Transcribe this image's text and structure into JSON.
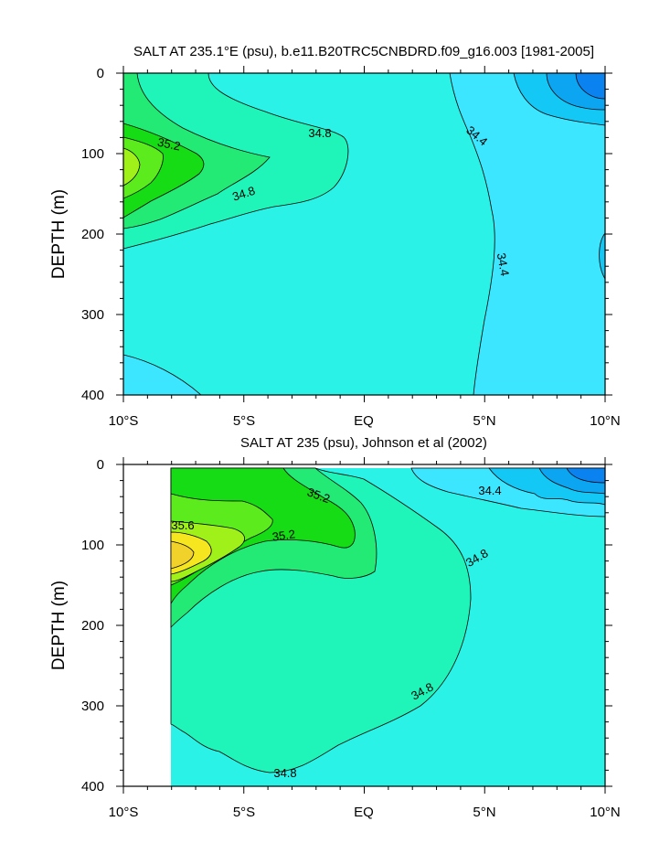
{
  "chart_data": [
    {
      "type": "contour",
      "title": "SALT AT 235.1°E (psu), b.e11.B20TRC5CNBDRD.f09_g16.003 [1981-2005]",
      "ylabel": "DEPTH (m)",
      "xlabel": "",
      "xlim": [
        -10,
        10
      ],
      "ylim": [
        400,
        0
      ],
      "x_ticks": [
        -10,
        -5,
        0,
        5,
        10
      ],
      "x_tick_labels": [
        "10°S",
        "5°S",
        "EQ",
        "5°N",
        "10°N"
      ],
      "y_ticks": [
        0,
        100,
        200,
        300,
        400
      ],
      "y_tick_labels": [
        "0",
        "100",
        "200",
        "300",
        "400"
      ],
      "data_extent": {
        "lat": [
          -10,
          10
        ],
        "depth": [
          0,
          400
        ]
      },
      "contour_interval": 0.2,
      "contour_labels": [
        "35.2",
        "34.8",
        "34.8",
        "34.4",
        "34.4"
      ],
      "fill_colors": {
        "33.8": "#0a82f0",
        "34.0": "#0ba5f2",
        "34.2": "#14c8f5",
        "34.4": "#3ce6ff",
        "34.6": "#2af2e6",
        "34.8": "#1ff5b8",
        "35.0": "#22ea74",
        "35.2": "#15dc15",
        "35.4": "#5cec1e",
        "35.6": "#a0f01a",
        "35.8": "#f5e620"
      }
    },
    {
      "type": "contour",
      "title": "SALT AT 235 (psu), Johnson et al (2002)",
      "ylabel": "DEPTH (m)",
      "xlabel": "",
      "xlim": [
        -10,
        10
      ],
      "ylim": [
        400,
        0
      ],
      "x_ticks": [
        -10,
        -5,
        0,
        5,
        10
      ],
      "x_tick_labels": [
        "10°S",
        "5°S",
        "EQ",
        "5°N",
        "10°N"
      ],
      "y_ticks": [
        0,
        100,
        200,
        300,
        400
      ],
      "y_tick_labels": [
        "0",
        "100",
        "200",
        "300",
        "400"
      ],
      "data_extent": {
        "lat": [
          -8,
          10
        ],
        "depth": [
          5,
          400
        ]
      },
      "contour_interval": 0.2,
      "contour_labels": [
        "35.2",
        "35.6",
        "35.2",
        "34.4",
        "34.8",
        "34.8",
        "34.8"
      ],
      "fill_colors": {
        "33.8": "#0a82f0",
        "34.0": "#0ba5f2",
        "34.2": "#14c8f5",
        "34.4": "#3ce6ff",
        "34.6": "#2af2e6",
        "34.8": "#1ff5b8",
        "35.0": "#22ea74",
        "35.2": "#15dc15",
        "35.4": "#5cec1e",
        "35.6": "#a0f01a",
        "35.8": "#f5e620"
      }
    }
  ]
}
